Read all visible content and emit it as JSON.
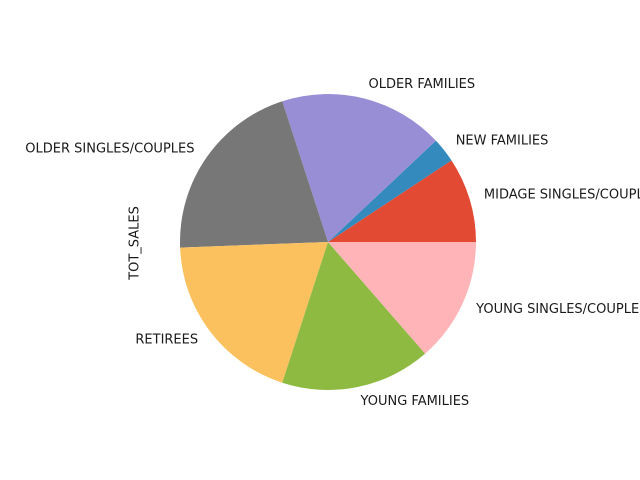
{
  "chart_data": {
    "type": "pie",
    "ylabel": "TOT_SALES",
    "categories": [
      "MIDAGE SINGLES/COUPLES",
      "NEW FAMILIES",
      "OLDER FAMILIES",
      "OLDER SINGLES/COUPLES",
      "RETIREES",
      "YOUNG FAMILIES",
      "YOUNG SINGLES/COUPLES"
    ],
    "values": [
      9.3,
      2.7,
      18.0,
      20.6,
      19.4,
      16.4,
      13.6
    ],
    "colors": [
      "#E24A33",
      "#348ABD",
      "#988ED5",
      "#777777",
      "#FBC15E",
      "#8EBA42",
      "#FFB5B8"
    ],
    "start_angle": 0,
    "direction": "counterclockwise"
  }
}
